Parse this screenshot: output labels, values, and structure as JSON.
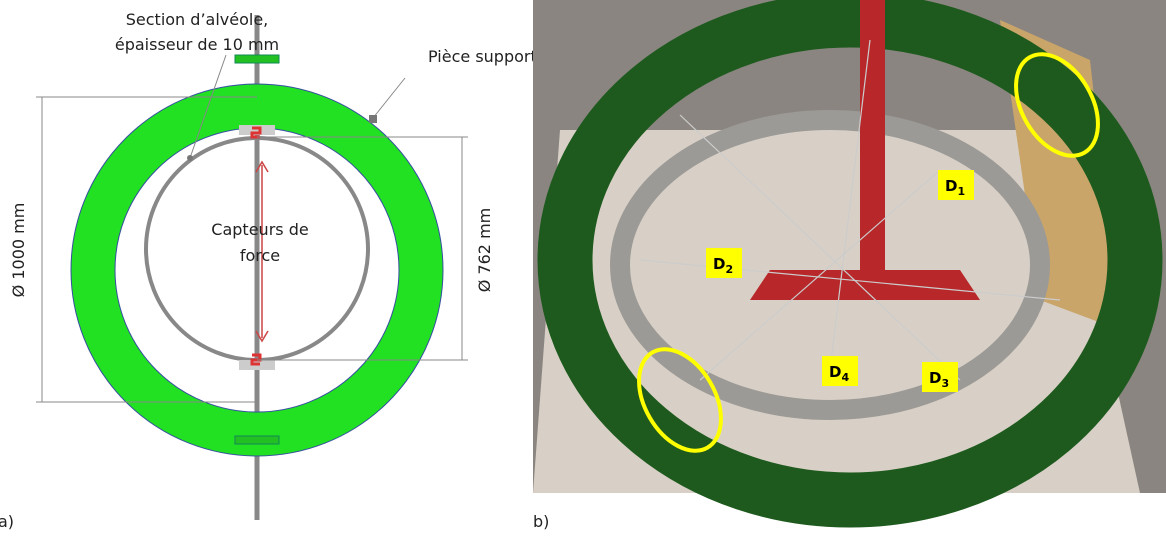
{
  "panel_a": {
    "label": "a)",
    "section_note": [
      "Section d’alvéole,",
      "épaisseur de 10 mm"
    ],
    "support_note": "Pièce support",
    "sensor_note": [
      "Capteurs de",
      "force"
    ],
    "outer_diameter": "Ø 1000 mm",
    "inner_diameter": "Ø 762 mm"
  },
  "panel_b": {
    "label": "b)",
    "markers": [
      {
        "text": "D",
        "sub": "1"
      },
      {
        "text": "D",
        "sub": "2"
      },
      {
        "text": "D",
        "sub": "3"
      },
      {
        "text": "D",
        "sub": "4"
      }
    ]
  }
}
